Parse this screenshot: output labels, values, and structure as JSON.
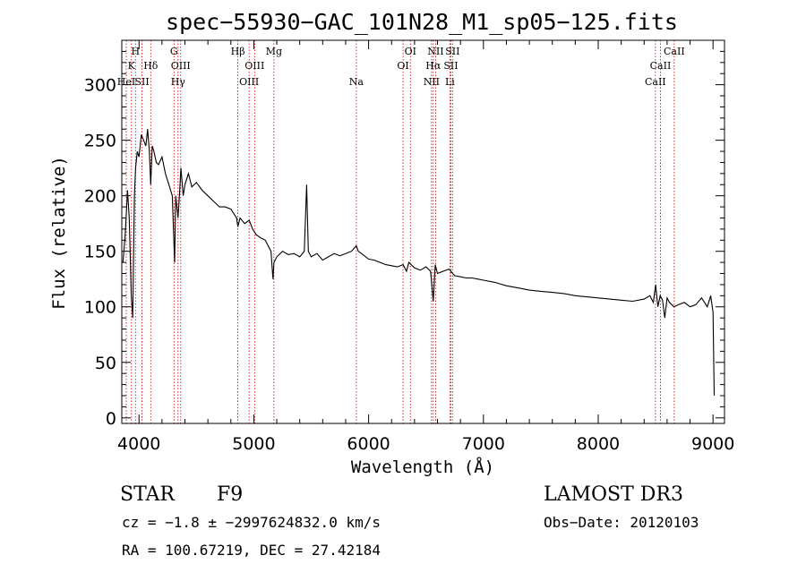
{
  "chart_data": {
    "type": "line",
    "title": "spec−55930−GAC_101N28_M1_sp05−125.fits",
    "xlabel": "Wavelength (Å)",
    "ylabel": "Flux (relative)",
    "xlim": [
      3850,
      9100
    ],
    "ylim": [
      -5,
      340
    ],
    "xticks": [
      4000,
      5000,
      6000,
      7000,
      8000,
      9000
    ],
    "yticks": [
      0,
      50,
      100,
      150,
      200,
      250,
      300
    ],
    "series": [
      {
        "name": "flux",
        "x": [
          3860,
          3880,
          3900,
          3915,
          3933,
          3945,
          3960,
          3970,
          3985,
          4000,
          4020,
          4040,
          4060,
          4075,
          4090,
          4102,
          4115,
          4130,
          4150,
          4170,
          4200,
          4230,
          4260,
          4290,
          4310,
          4320,
          4340,
          4355,
          4365,
          4385,
          4400,
          4430,
          4460,
          4500,
          4550,
          4600,
          4650,
          4700,
          4750,
          4800,
          4850,
          4861,
          4880,
          4920,
          4960,
          4990,
          5020,
          5060,
          5100,
          5150,
          5167,
          5175,
          5200,
          5250,
          5300,
          5350,
          5400,
          5440,
          5460,
          5475,
          5500,
          5550,
          5600,
          5650,
          5700,
          5750,
          5800,
          5850,
          5893,
          5910,
          5950,
          6000,
          6050,
          6100,
          6150,
          6200,
          6250,
          6300,
          6330,
          6350,
          6400,
          6450,
          6500,
          6540,
          6563,
          6580,
          6600,
          6650,
          6700,
          6750,
          6800,
          6850,
          6900,
          6950,
          7000,
          7100,
          7200,
          7300,
          7400,
          7500,
          7600,
          7700,
          7800,
          7900,
          8000,
          8100,
          8200,
          8300,
          8400,
          8450,
          8480,
          8500,
          8520,
          8540,
          8560,
          8580,
          8600,
          8620,
          8660,
          8700,
          8750,
          8800,
          8850,
          8900,
          8950,
          8980,
          9000,
          9010
        ],
        "values": [
          140,
          165,
          205,
          180,
          110,
          90,
          200,
          225,
          240,
          235,
          255,
          250,
          245,
          260,
          240,
          210,
          245,
          240,
          230,
          228,
          235,
          220,
          210,
          200,
          140,
          200,
          180,
          205,
          225,
          200,
          210,
          220,
          208,
          212,
          205,
          200,
          195,
          190,
          190,
          188,
          180,
          172,
          180,
          175,
          178,
          170,
          165,
          162,
          160,
          150,
          125,
          140,
          145,
          150,
          147,
          148,
          145,
          150,
          210,
          150,
          145,
          148,
          142,
          145,
          148,
          146,
          148,
          150,
          155,
          150,
          147,
          143,
          142,
          140,
          138,
          137,
          136,
          138,
          132,
          140,
          135,
          133,
          136,
          132,
          105,
          138,
          130,
          132,
          134,
          128,
          127,
          126,
          126,
          125,
          124,
          122,
          119,
          117,
          115,
          114,
          113,
          112,
          110,
          109,
          108,
          107,
          106,
          105,
          107,
          110,
          104,
          120,
          100,
          110,
          106,
          90,
          108,
          104,
          100,
          102,
          104,
          100,
          102,
          108,
          100,
          110,
          95,
          20
        ]
      }
    ],
    "lines": [
      {
        "wl": 3889,
        "labels": [
          {
            "text": "HeI",
            "row": 3
          }
        ]
      },
      {
        "wl": 3934,
        "labels": [
          {
            "text": "K",
            "row": 2
          }
        ]
      },
      {
        "wl": 3969,
        "labels": [
          {
            "text": "H",
            "row": 1
          }
        ]
      },
      {
        "wl": 4026,
        "labels": [
          {
            "text": "SII",
            "row": 3
          }
        ]
      },
      {
        "wl": 4102,
        "labels": [
          {
            "text": "Hδ",
            "row": 2
          }
        ]
      },
      {
        "wl": 4305,
        "labels": [
          {
            "text": "G",
            "row": 1
          }
        ]
      },
      {
        "wl": 4340,
        "labels": [
          {
            "text": "Hγ",
            "row": 3
          }
        ]
      },
      {
        "wl": 4363,
        "labels": [
          {
            "text": "OIII",
            "row": 2
          }
        ]
      },
      {
        "wl": 4861,
        "labels": [
          {
            "text": "Hβ",
            "row": 1
          }
        ]
      },
      {
        "wl": 4959,
        "labels": [
          {
            "text": "OIII",
            "row": 3
          }
        ]
      },
      {
        "wl": 5007,
        "labels": [
          {
            "text": "OIII",
            "row": 2
          }
        ]
      },
      {
        "wl": 5175,
        "labels": [
          {
            "text": "Mg",
            "row": 1
          }
        ]
      },
      {
        "wl": 5893,
        "labels": [
          {
            "text": "Na",
            "row": 3
          }
        ]
      },
      {
        "wl": 6300,
        "labels": [
          {
            "text": "OI",
            "row": 2
          }
        ]
      },
      {
        "wl": 6364,
        "labels": [
          {
            "text": "OI",
            "row": 1
          }
        ]
      },
      {
        "wl": 6548,
        "labels": [
          {
            "text": "NII",
            "row": 3
          }
        ]
      },
      {
        "wl": 6563,
        "labels": [
          {
            "text": "Hα",
            "row": 2
          }
        ]
      },
      {
        "wl": 6584,
        "labels": [
          {
            "text": "NII",
            "row": 1
          }
        ]
      },
      {
        "wl": 6708,
        "labels": [
          {
            "text": "Li",
            "row": 3
          }
        ]
      },
      {
        "wl": 6717,
        "labels": [
          {
            "text": "SII",
            "row": 2
          }
        ]
      },
      {
        "wl": 6731,
        "labels": [
          {
            "text": "SII",
            "row": 1
          }
        ]
      },
      {
        "wl": 8498,
        "labels": [
          {
            "text": "CaII",
            "row": 3
          }
        ]
      },
      {
        "wl": 8542,
        "labels": [
          {
            "text": "CaII",
            "row": 2
          }
        ]
      },
      {
        "wl": 8662,
        "labels": [
          {
            "text": "CaII",
            "row": 1
          }
        ]
      }
    ],
    "line_color": "#cc0000",
    "spectrum_color": "#000000"
  },
  "info": {
    "object_class": "STAR",
    "subclass": "F9",
    "survey": "LAMOST DR3",
    "redshift": "cz = −1.8 ± −2997624832.0 km/s",
    "obs_date": "Obs−Date: 20120103",
    "coords": "RA = 100.67219, DEC =  27.42184"
  }
}
